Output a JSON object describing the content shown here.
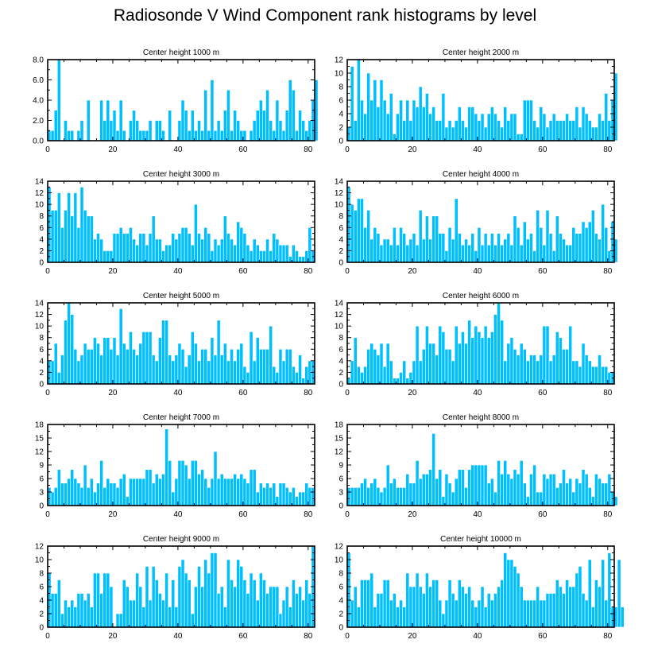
{
  "title": "Radiosonde V Wind Component rank histograms by level",
  "colors": {
    "bar": "#00BFFF",
    "bar_edge": "#ffffff",
    "axis": "#000000"
  },
  "chart_data": [
    {
      "type": "bar",
      "title": "Center height 1000 m",
      "xlim": [
        0,
        82
      ],
      "ylim": [
        0,
        8
      ],
      "xticks": [
        0,
        20,
        40,
        60,
        80
      ],
      "yticks": [
        0,
        2,
        4,
        6,
        8
      ],
      "ytick_labels": [
        "0.0",
        "2.0",
        "4.0",
        "6.0",
        "8.0"
      ],
      "values": [
        1,
        1,
        3,
        8,
        0,
        2,
        1,
        1,
        0,
        1,
        2,
        0,
        4,
        0,
        0,
        0,
        4,
        2,
        4,
        2,
        3,
        1,
        4,
        1,
        0,
        2,
        3,
        2,
        1,
        1,
        1,
        2,
        0,
        2,
        2,
        1,
        0,
        3,
        0,
        0,
        2,
        4,
        3,
        1,
        3,
        1,
        2,
        1,
        5,
        1,
        6,
        1,
        2,
        1,
        3,
        5,
        1,
        3,
        2,
        1,
        1,
        0,
        1,
        2,
        3,
        4,
        3,
        5,
        2,
        1,
        4,
        2,
        1,
        3,
        6,
        5,
        1,
        3,
        2,
        1,
        2,
        4,
        6
      ]
    },
    {
      "type": "bar",
      "title": "Center height 2000 m",
      "xlim": [
        0,
        82
      ],
      "ylim": [
        0,
        12
      ],
      "xticks": [
        0,
        20,
        40,
        60,
        80
      ],
      "yticks": [
        0,
        2,
        4,
        6,
        8,
        10,
        12
      ],
      "ytick_labels": [
        "0",
        "2",
        "4",
        "6",
        "8",
        "10",
        "12"
      ],
      "values": [
        2,
        11,
        3,
        12,
        6,
        4,
        10,
        6,
        9,
        5,
        9,
        6,
        4,
        7,
        1,
        4,
        6,
        3,
        6,
        3,
        6,
        5,
        8,
        5,
        7,
        4,
        5,
        3,
        3,
        7,
        2,
        3,
        2,
        3,
        5,
        3,
        2,
        5,
        5,
        4,
        3,
        4,
        2,
        4,
        5,
        4,
        3,
        2,
        5,
        3,
        4,
        4,
        1,
        1,
        6,
        6,
        6,
        3,
        2,
        5,
        4,
        2,
        3,
        4,
        3,
        3,
        3,
        4,
        3,
        3,
        5,
        2,
        5,
        4,
        3,
        2,
        2,
        4,
        3,
        7,
        3,
        6,
        10
      ]
    },
    {
      "type": "bar",
      "title": "Center height 3000 m",
      "xlim": [
        0,
        82
      ],
      "ylim": [
        0,
        14
      ],
      "xticks": [
        0,
        20,
        40,
        60,
        80
      ],
      "yticks": [
        0,
        2,
        4,
        6,
        8,
        10,
        12,
        14
      ],
      "ytick_labels": [
        "0",
        "2",
        "4",
        "6",
        "8",
        "10",
        "12",
        "14"
      ],
      "values": [
        13,
        9,
        9,
        12,
        6,
        9,
        12,
        8,
        12,
        6,
        13,
        9,
        8,
        8,
        4,
        5,
        4,
        2,
        2,
        2,
        5,
        5,
        6,
        5,
        5,
        6,
        4,
        3,
        5,
        5,
        3,
        5,
        8,
        4,
        4,
        2,
        3,
        3,
        5,
        4,
        5,
        6,
        6,
        5,
        3,
        10,
        5,
        4,
        6,
        5,
        2,
        4,
        3,
        4,
        8,
        5,
        4,
        3,
        7,
        6,
        5,
        3,
        2,
        4,
        3,
        2,
        2,
        4,
        2,
        5,
        4,
        3,
        3,
        3,
        1,
        3,
        2,
        1,
        1,
        2,
        6,
        2
      ]
    },
    {
      "type": "bar",
      "title": "Center height 4000 m",
      "xlim": [
        0,
        82
      ],
      "ylim": [
        0,
        14
      ],
      "xticks": [
        0,
        20,
        40,
        60,
        80
      ],
      "yticks": [
        0,
        2,
        4,
        6,
        8,
        10,
        12,
        14
      ],
      "ytick_labels": [
        "0",
        "2",
        "4",
        "6",
        "8",
        "10",
        "12",
        "14"
      ],
      "values": [
        13,
        10,
        9,
        11,
        11,
        6,
        9,
        4,
        6,
        5,
        3,
        4,
        4,
        3,
        6,
        3,
        6,
        5,
        3,
        4,
        5,
        3,
        9,
        4,
        8,
        4,
        8,
        8,
        5,
        5,
        2,
        6,
        4,
        11,
        5,
        3,
        4,
        3,
        5,
        2,
        6,
        3,
        5,
        3,
        5,
        3,
        5,
        3,
        4,
        5,
        3,
        8,
        6,
        3,
        7,
        4,
        5,
        2,
        9,
        6,
        3,
        9,
        5,
        2,
        8,
        5,
        4,
        3,
        3,
        6,
        5,
        5,
        7,
        6,
        7,
        9,
        5,
        4,
        10,
        6,
        2,
        7,
        4
      ]
    },
    {
      "type": "bar",
      "title": "Center height 5000 m",
      "xlim": [
        0,
        82
      ],
      "ylim": [
        0,
        14
      ],
      "xticks": [
        0,
        20,
        40,
        60,
        80
      ],
      "yticks": [
        0,
        2,
        4,
        6,
        8,
        10,
        12,
        14
      ],
      "ytick_labels": [
        "0",
        "2",
        "4",
        "6",
        "8",
        "10",
        "12",
        "14"
      ],
      "values": [
        4,
        4,
        7,
        2,
        5,
        11,
        14,
        12,
        6,
        4,
        5,
        7,
        6,
        6,
        8,
        7,
        5,
        8,
        8,
        6,
        8,
        5,
        13,
        7,
        6,
        9,
        6,
        5,
        7,
        9,
        9,
        9,
        5,
        4,
        8,
        11,
        11,
        5,
        4,
        5,
        7,
        6,
        3,
        5,
        9,
        7,
        4,
        6,
        6,
        4,
        8,
        5,
        11,
        5,
        7,
        4,
        6,
        4,
        6,
        7,
        3,
        2,
        9,
        4,
        8,
        6,
        6,
        6,
        10,
        3,
        2,
        6,
        4,
        6,
        6,
        3,
        2,
        5,
        1,
        3,
        4,
        4
      ]
    },
    {
      "type": "bar",
      "title": "Center height 6000 m",
      "xlim": [
        0,
        82
      ],
      "ylim": [
        0,
        14
      ],
      "xticks": [
        0,
        20,
        40,
        60,
        80
      ],
      "yticks": [
        0,
        2,
        4,
        6,
        8,
        10,
        12,
        14
      ],
      "ytick_labels": [
        "0",
        "2",
        "4",
        "6",
        "8",
        "10",
        "12",
        "14"
      ],
      "values": [
        1,
        4,
        8,
        3,
        2,
        3,
        6,
        7,
        6,
        5,
        7,
        3,
        7,
        4,
        1,
        1,
        2,
        4,
        1,
        2,
        4,
        10,
        4,
        6,
        10,
        7,
        7,
        5,
        10,
        9,
        6,
        6,
        4,
        10,
        7,
        9,
        7,
        11,
        8,
        10,
        9,
        8,
        10,
        8,
        9,
        12,
        14,
        11,
        4,
        7,
        8,
        6,
        5,
        7,
        6,
        4,
        5,
        5,
        4,
        5,
        10,
        10,
        4,
        5,
        9,
        8,
        6,
        6,
        10,
        4,
        4,
        3,
        7,
        5,
        4,
        3,
        3,
        5,
        3,
        3,
        2,
        2
      ]
    },
    {
      "type": "bar",
      "title": "Center height 7000 m",
      "xlim": [
        0,
        82
      ],
      "ylim": [
        0,
        18
      ],
      "xticks": [
        0,
        20,
        40,
        60,
        80
      ],
      "yticks": [
        0,
        3,
        6,
        9,
        12,
        15,
        18
      ],
      "ytick_labels": [
        "0",
        "3",
        "6",
        "9",
        "12",
        "15",
        "18"
      ],
      "values": [
        4,
        3,
        4,
        8,
        5,
        5,
        6,
        8,
        6,
        5,
        4,
        9,
        4,
        6,
        3,
        5,
        10,
        4,
        6,
        5,
        5,
        4,
        6,
        7,
        2,
        6,
        6,
        6,
        6,
        6,
        8,
        8,
        5,
        7,
        6,
        7,
        17,
        10,
        3,
        6,
        10,
        10,
        9,
        6,
        10,
        10,
        7,
        8,
        6,
        4,
        6,
        12,
        6,
        7,
        6,
        6,
        6,
        7,
        6,
        7,
        6,
        5,
        8,
        8,
        3,
        5,
        4,
        5,
        4,
        5,
        2,
        5,
        5,
        4,
        3,
        4,
        2,
        3,
        3,
        5,
        4,
        4
      ]
    },
    {
      "type": "bar",
      "title": "Center height 8000 m",
      "xlim": [
        0,
        82
      ],
      "ylim": [
        0,
        18
      ],
      "xticks": [
        0,
        20,
        40,
        60,
        80
      ],
      "yticks": [
        0,
        3,
        6,
        9,
        12,
        15,
        18
      ],
      "ytick_labels": [
        "0",
        "3",
        "6",
        "9",
        "12",
        "15",
        "18"
      ],
      "values": [
        4,
        4,
        4,
        4,
        5,
        6,
        4,
        5,
        6,
        4,
        3,
        4,
        9,
        5,
        6,
        4,
        4,
        4,
        7,
        5,
        5,
        10,
        6,
        7,
        7,
        8,
        16,
        6,
        8,
        2,
        7,
        5,
        3,
        6,
        8,
        8,
        4,
        8,
        9,
        9,
        9,
        9,
        9,
        5,
        6,
        3,
        10,
        7,
        10,
        7,
        6,
        8,
        7,
        10,
        5,
        2,
        7,
        9,
        3,
        3,
        7,
        6,
        7,
        7,
        4,
        5,
        8,
        5,
        6,
        3,
        6,
        5,
        8,
        7,
        4,
        2,
        7,
        6,
        5,
        5,
        7,
        3,
        2
      ]
    },
    {
      "type": "bar",
      "title": "Center height 9000 m",
      "xlim": [
        0,
        82
      ],
      "ylim": [
        0,
        12
      ],
      "xticks": [
        0,
        20,
        40,
        60,
        80
      ],
      "yticks": [
        0,
        2,
        4,
        6,
        8,
        10,
        12
      ],
      "ytick_labels": [
        "0",
        "2",
        "4",
        "6",
        "8",
        "10",
        "12"
      ],
      "values": [
        8,
        5,
        5,
        7,
        2,
        4,
        3,
        4,
        3,
        5,
        5,
        4,
        5,
        3,
        8,
        8,
        5,
        8,
        8,
        6,
        0,
        2,
        2,
        7,
        6,
        4,
        4,
        8,
        6,
        3,
        9,
        4,
        9,
        7,
        5,
        4,
        8,
        3,
        7,
        3,
        9,
        10,
        8,
        7,
        2,
        6,
        9,
        6,
        10,
        8,
        11,
        11,
        5,
        6,
        3,
        10,
        7,
        6,
        10,
        9,
        7,
        5,
        8,
        7,
        4,
        8,
        7,
        5,
        6,
        6,
        6,
        2,
        4,
        6,
        3,
        7,
        5,
        6,
        4,
        7,
        5,
        12
      ]
    },
    {
      "type": "bar",
      "title": "Center height 10000 m",
      "xlim": [
        0,
        82
      ],
      "ylim": [
        0,
        12
      ],
      "xticks": [
        0,
        20,
        40,
        60,
        80
      ],
      "yticks": [
        0,
        2,
        4,
        6,
        8,
        10,
        12
      ],
      "ytick_labels": [
        "0",
        "2",
        "4",
        "6",
        "8",
        "10",
        "12"
      ],
      "values": [
        11,
        4,
        6,
        3,
        7,
        7,
        7,
        8,
        3,
        5,
        5,
        7,
        7,
        4,
        5,
        3,
        4,
        3,
        8,
        6,
        6,
        8,
        6,
        5,
        8,
        6,
        7,
        7,
        4,
        2,
        4,
        7,
        5,
        4,
        7,
        6,
        5,
        6,
        4,
        3,
        4,
        6,
        3,
        5,
        4,
        5,
        6,
        7,
        11,
        10,
        10,
        9,
        8,
        6,
        4,
        4,
        4,
        4,
        6,
        4,
        4,
        5,
        5,
        5,
        7,
        6,
        5,
        7,
        6,
        6,
        8,
        9,
        5,
        4,
        10,
        3,
        7,
        6,
        10,
        4,
        11,
        3,
        3,
        10,
        3
      ]
    }
  ]
}
